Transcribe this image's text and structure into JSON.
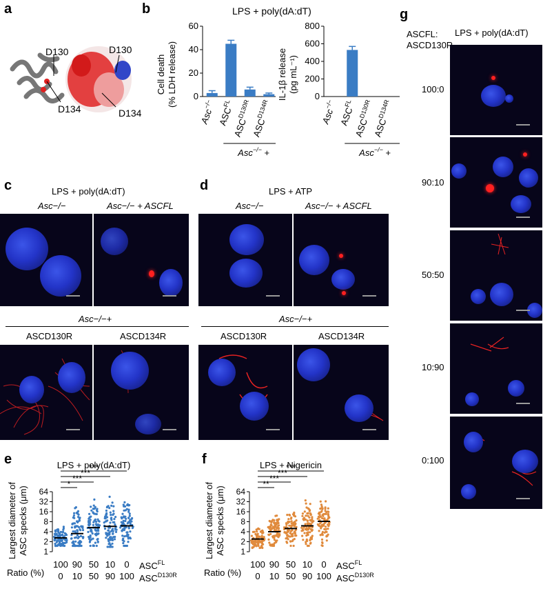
{
  "panels": {
    "a": {
      "label": "a",
      "annotations": [
        "D130",
        "D134",
        "D130",
        "D134"
      ]
    },
    "b": {
      "label": "b",
      "title": "LPS + poly(dA:dT)",
      "left": {
        "ylabel_1": "Cell death",
        "ylabel_2": "(% LDH release)",
        "yticks": [
          "0",
          "20",
          "40",
          "60"
        ]
      },
      "right": {
        "ylabel_1": "IL-1β release",
        "ylabel_2": "(pg mL⁻¹)",
        "yticks": [
          "0",
          "200",
          "400",
          "600",
          "800"
        ]
      },
      "categories": [
        "Asc−/−",
        "ASCFL",
        "ASCD130R",
        "ASCD134R"
      ],
      "group_label": "Asc−/− +"
    },
    "c": {
      "label": "c",
      "title": "LPS + poly(dA:dT)",
      "col1": "Asc−/−",
      "col2": "Asc−/− + ASCFL",
      "group": "Asc−/−+",
      "col3": "ASCD130R",
      "col4": "ASCD134R"
    },
    "d": {
      "label": "d",
      "title": "LPS + ATP",
      "col1": "Asc−/−",
      "col2": "Asc−/− + ASCFL",
      "group": "Asc−/−+",
      "col3": "ASCD130R",
      "col4": "ASCD134R"
    },
    "e": {
      "label": "e",
      "title": "LPS + poly(dA:dT)",
      "ylabel_1": "Largest diameter of",
      "ylabel_2": "ASC specks (μm)",
      "yticks": [
        "64",
        "32",
        "16",
        "8",
        "4",
        "2",
        "1"
      ],
      "ratio_label": "Ratio (%)",
      "row1": [
        "100",
        "90",
        "50",
        "10",
        "0"
      ],
      "row2": [
        "0",
        "10",
        "50",
        "90",
        "100"
      ],
      "row1_name": "ASCFL",
      "row2_name": "ASCD130R",
      "sig": [
        "*",
        "***",
        "***",
        "***"
      ]
    },
    "f": {
      "label": "f",
      "title": "LPS + Nigericin",
      "ylabel_1": "Largest diameter of",
      "ylabel_2": "ASC specks (μm)",
      "yticks": [
        "64",
        "32",
        "16",
        "8",
        "4",
        "2",
        "1"
      ],
      "ratio_label": "Ratio (%)",
      "row1": [
        "100",
        "90",
        "50",
        "10",
        "0"
      ],
      "row2": [
        "0",
        "10",
        "50",
        "90",
        "100"
      ],
      "row1_name": "ASCFL",
      "row2_name": "ASCD130R",
      "sig": [
        "**",
        "***",
        "***",
        "***"
      ]
    },
    "g": {
      "label": "g",
      "title": "LPS + poly(dA:dT)",
      "header_1": "ASCFL:",
      "header_2": "ASCD130R",
      "ratios": [
        "100:0",
        "90:10",
        "50:50",
        "10:90",
        "0:100"
      ]
    }
  },
  "chart_data": [
    {
      "type": "bar",
      "panel": "b-left",
      "ylabel": "Cell death (% LDH release)",
      "categories": [
        "Asc−/−",
        "ASCFL",
        "ASCD130R",
        "ASCD134R"
      ],
      "values": [
        3,
        45,
        6,
        2
      ],
      "errors": [
        2,
        3,
        2,
        1
      ],
      "ylim": [
        0,
        60
      ],
      "color": "#3a7cc4"
    },
    {
      "type": "bar",
      "panel": "b-right",
      "ylabel": "IL-1β release (pg mL⁻¹)",
      "categories": [
        "Asc−/−",
        "ASCFL",
        "ASCD130R",
        "ASCD134R"
      ],
      "values": [
        0,
        530,
        0,
        0
      ],
      "errors": [
        0,
        40,
        0,
        0
      ],
      "ylim": [
        0,
        800
      ],
      "color": "#3a7cc4"
    },
    {
      "type": "scatter",
      "panel": "e",
      "ylabel": "Largest diameter of ASC specks (μm)",
      "categories": [
        "100:0",
        "90:10",
        "50:50",
        "10:90",
        "0:100"
      ],
      "medians": [
        2.6,
        3.5,
        5.3,
        5.8,
        6.0
      ],
      "ranges": [
        [
          1.5,
          7
        ],
        [
          1.5,
          40
        ],
        [
          1.5,
          40
        ],
        [
          1.4,
          45
        ],
        [
          1.5,
          45
        ]
      ],
      "yscale": "log2",
      "ylim": [
        1,
        64
      ],
      "color": "#3a7cc4"
    },
    {
      "type": "scatter",
      "panel": "f",
      "ylabel": "Largest diameter of ASC specks (μm)",
      "categories": [
        "100:0",
        "90:10",
        "50:50",
        "10:90",
        "0:100"
      ],
      "medians": [
        2.4,
        4.0,
        5.0,
        6.0,
        8.2
      ],
      "ranges": [
        [
          1.3,
          6
        ],
        [
          1.5,
          20
        ],
        [
          1.5,
          22
        ],
        [
          1.5,
          35
        ],
        [
          1.5,
          38
        ]
      ],
      "yscale": "log2",
      "ylim": [
        1,
        64
      ],
      "color": "#e08a3c"
    }
  ]
}
